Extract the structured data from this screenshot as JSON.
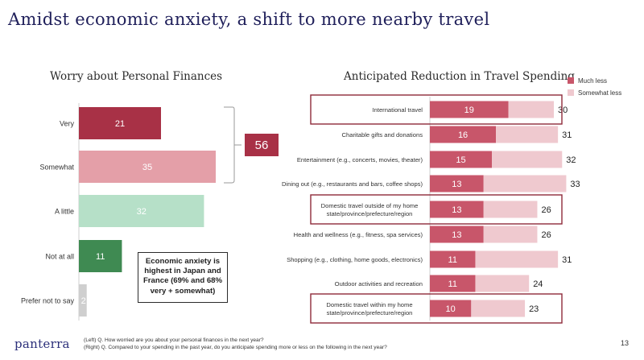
{
  "title": "Amidst economic anxiety, a shift to more nearby travel",
  "left_chart_title": "Worry about Personal Finances",
  "right_chart_title": "Anticipated Reduction in Travel Spending",
  "bracket_total": "56",
  "callout_lines": [
    "Economic anxiety is",
    "highest in Japan and",
    "France (69% and 68%",
    "very + somewhat)"
  ],
  "logo": "panterra",
  "footnote_left": "(Left) Q. How worried are you about your personal finances in the next year?",
  "footnote_right": "(Right) Q. Compared to your spending in the past year, do you anticipate spending more or less on the following in the next year?",
  "page_number": "13",
  "colors": {
    "very": "#a83146",
    "somewhat": "#e49fa8",
    "a_little": "#b6e0c8",
    "not_at_all": "#3f8a52",
    "prefer_not": "#cfcfcf",
    "much_less": "#c8566a",
    "somewhat_less": "#efc9cf",
    "highlight_border": "#8e2a3a",
    "bracket": "#9a9a9a"
  },
  "chart_data": [
    {
      "type": "bar",
      "orientation": "horizontal",
      "title": "Worry about Personal Finances",
      "categories": [
        "Very",
        "Somewhat",
        "A little",
        "Not at all",
        "Prefer not to say"
      ],
      "values": [
        21,
        35,
        32,
        11,
        2
      ],
      "xlim": [
        0,
        40
      ]
    },
    {
      "type": "bar",
      "orientation": "horizontal",
      "stacked": true,
      "title": "Anticipated Reduction in Travel Spending",
      "categories": [
        "International travel",
        "Charitable gifts and donations",
        "Entertainment (e.g., concerts, movies, theater)",
        "Dining out (e.g., restaurants and bars, coffee shops)",
        "Domestic travel outside of my home state/province/prefecture/region",
        "Health and wellness (e.g., fitness, spa services)",
        "Shopping (e.g., clothing, home goods, electronics)",
        "Outdoor activities and recreation",
        "Domestic travel within my home state/province/prefecture/region"
      ],
      "category_lines": [
        [
          "International travel"
        ],
        [
          "Charitable gifts and donations"
        ],
        [
          "Entertainment (e.g., concerts, movies, theater)"
        ],
        [
          "Dining out (e.g., restaurants and bars, coffee shops)"
        ],
        [
          "Domestic travel outside of my home",
          "state/province/prefecture/region"
        ],
        [
          "Health and wellness (e.g., fitness, spa services)"
        ],
        [
          "Shopping (e.g., clothing, home goods, electronics)"
        ],
        [
          "Outdoor activities and recreation"
        ],
        [
          "Domestic travel within my home",
          "state/province/prefecture/region"
        ]
      ],
      "highlighted": [
        true,
        false,
        false,
        false,
        true,
        false,
        false,
        false,
        true
      ],
      "series": [
        {
          "name": "Much less",
          "values": [
            19,
            16,
            15,
            13,
            13,
            13,
            11,
            11,
            10
          ]
        },
        {
          "name": "Somewhat less",
          "values": [
            11,
            15,
            17,
            20,
            13,
            13,
            20,
            13,
            13
          ]
        }
      ],
      "totals": [
        30,
        31,
        32,
        33,
        26,
        26,
        31,
        24,
        23
      ],
      "legend": "top-right"
    }
  ]
}
